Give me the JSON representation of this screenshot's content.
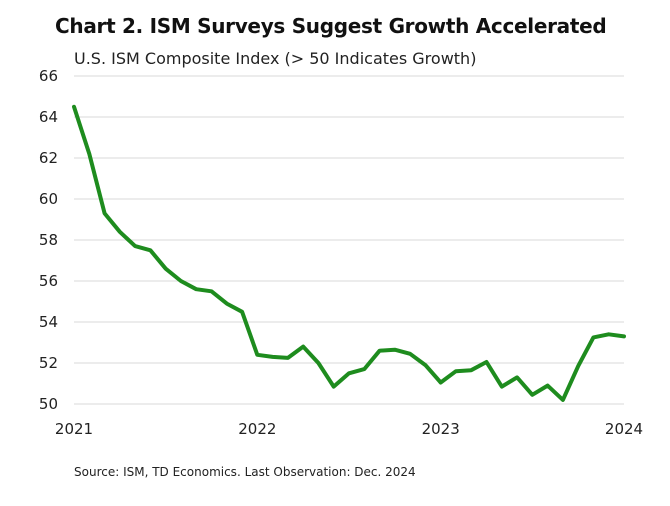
{
  "chart_data": {
    "type": "line",
    "title": "Chart 2. ISM Surveys Suggest Growth Accelerated",
    "subtitle": "U.S. ISM Composite Index (> 50 Indicates Growth)",
    "source": "Source: ISM, TD Economics. Last Observation: Dec. 2024",
    "xlabel": "",
    "ylabel": "",
    "ylim": [
      50,
      66
    ],
    "yticks": [
      50,
      52,
      54,
      56,
      58,
      60,
      62,
      64,
      66
    ],
    "xlim": [
      2021,
      2024
    ],
    "xticks": [
      "2021",
      "2022",
      "2023",
      "2024"
    ],
    "grid": true,
    "series": [
      {
        "color": "#1e8c1e",
        "x": [
          2021.0,
          2021.0833,
          2021.1667,
          2021.25,
          2021.3333,
          2021.4167,
          2021.5,
          2021.5833,
          2021.6667,
          2021.75,
          2021.8333,
          2021.9167,
          2022.0,
          2022.0833,
          2022.1667,
          2022.25,
          2022.3333,
          2022.4167,
          2022.5,
          2022.5833,
          2022.6667,
          2022.75,
          2022.8333,
          2022.9167,
          2023.0,
          2023.0833,
          2023.1667,
          2023.25,
          2023.3333,
          2023.4167,
          2023.5,
          2023.5833,
          2023.6667,
          2023.75,
          2023.8333,
          2023.9167,
          2024.0
        ],
        "values": [
          64.5,
          62.2,
          59.3,
          58.4,
          57.7,
          57.5,
          56.6,
          56.0,
          55.6,
          55.5,
          54.9,
          54.5,
          52.4,
          52.3,
          52.25,
          52.8,
          52.0,
          50.85,
          51.5,
          51.7,
          52.6,
          52.65,
          52.45,
          51.9,
          51.05,
          51.6,
          51.65,
          52.05,
          50.85,
          51.3,
          50.45,
          50.9,
          50.2,
          51.85,
          53.25,
          53.4,
          53.3
        ]
      }
    ]
  }
}
